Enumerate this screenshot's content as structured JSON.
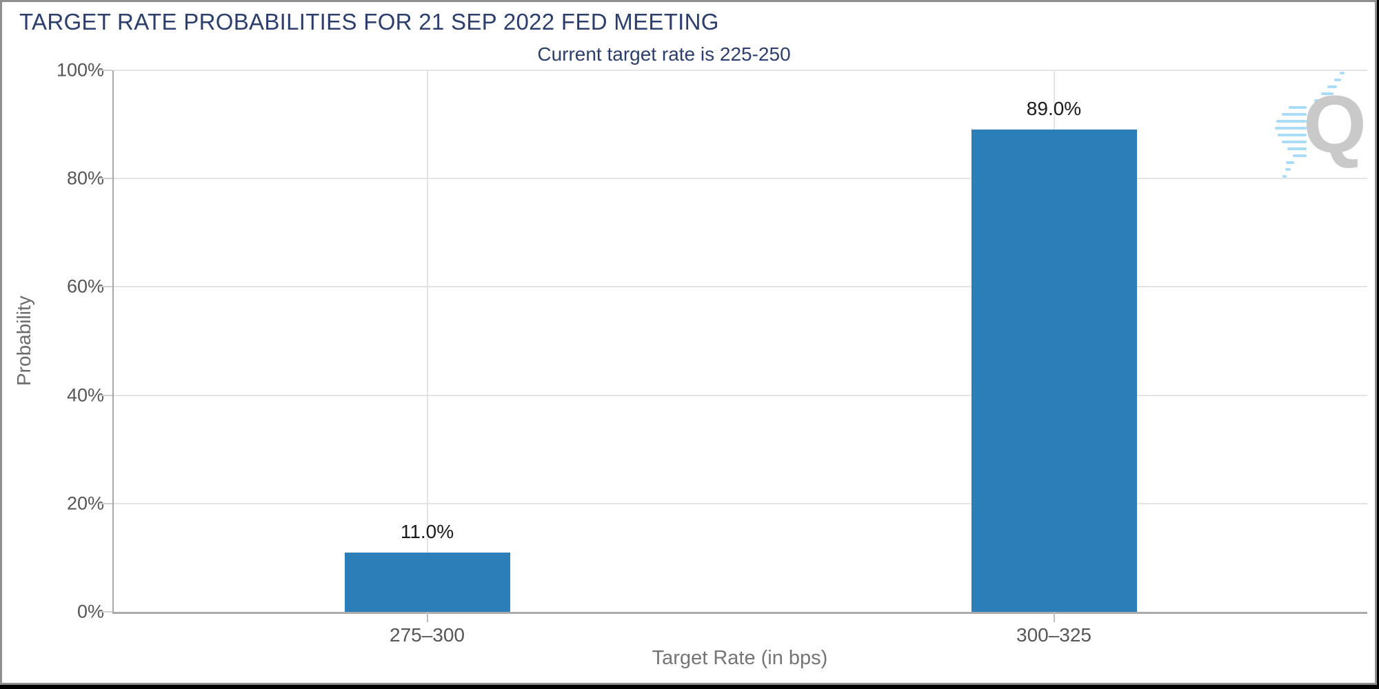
{
  "chart_data": {
    "type": "bar",
    "title": "TARGET RATE PROBABILITIES FOR 21 SEP 2022 FED MEETING",
    "subtitle": "Current target rate is 225-250",
    "categories": [
      "275–300",
      "300–325"
    ],
    "values": [
      11.0,
      89.0
    ],
    "value_labels": [
      "11.0%",
      "89.0%"
    ],
    "xlabel": "Target Rate (in bps)",
    "ylabel": "Probability",
    "ylim": [
      0,
      100
    ],
    "ytick_interval": 20,
    "ytick_labels": [
      "0%",
      "20%",
      "40%",
      "60%",
      "80%",
      "100%"
    ],
    "grid": true,
    "legend": "none",
    "bar_color": "#2B7EB8"
  },
  "watermark": {
    "letter": "Q"
  },
  "colors": {
    "title_navy": "#2C3E6E",
    "bar_blue": "#2B7EB8",
    "axis_text_gray": "#565656",
    "axis_title_gray": "#757575",
    "gridline_gray": "#E4E4E4",
    "axis_line_gray": "#ABABAB",
    "frame_gray": "#8E8E8E",
    "watermark_gray": "#C9C9C9",
    "watermark_blue": "#A8DCF7"
  }
}
